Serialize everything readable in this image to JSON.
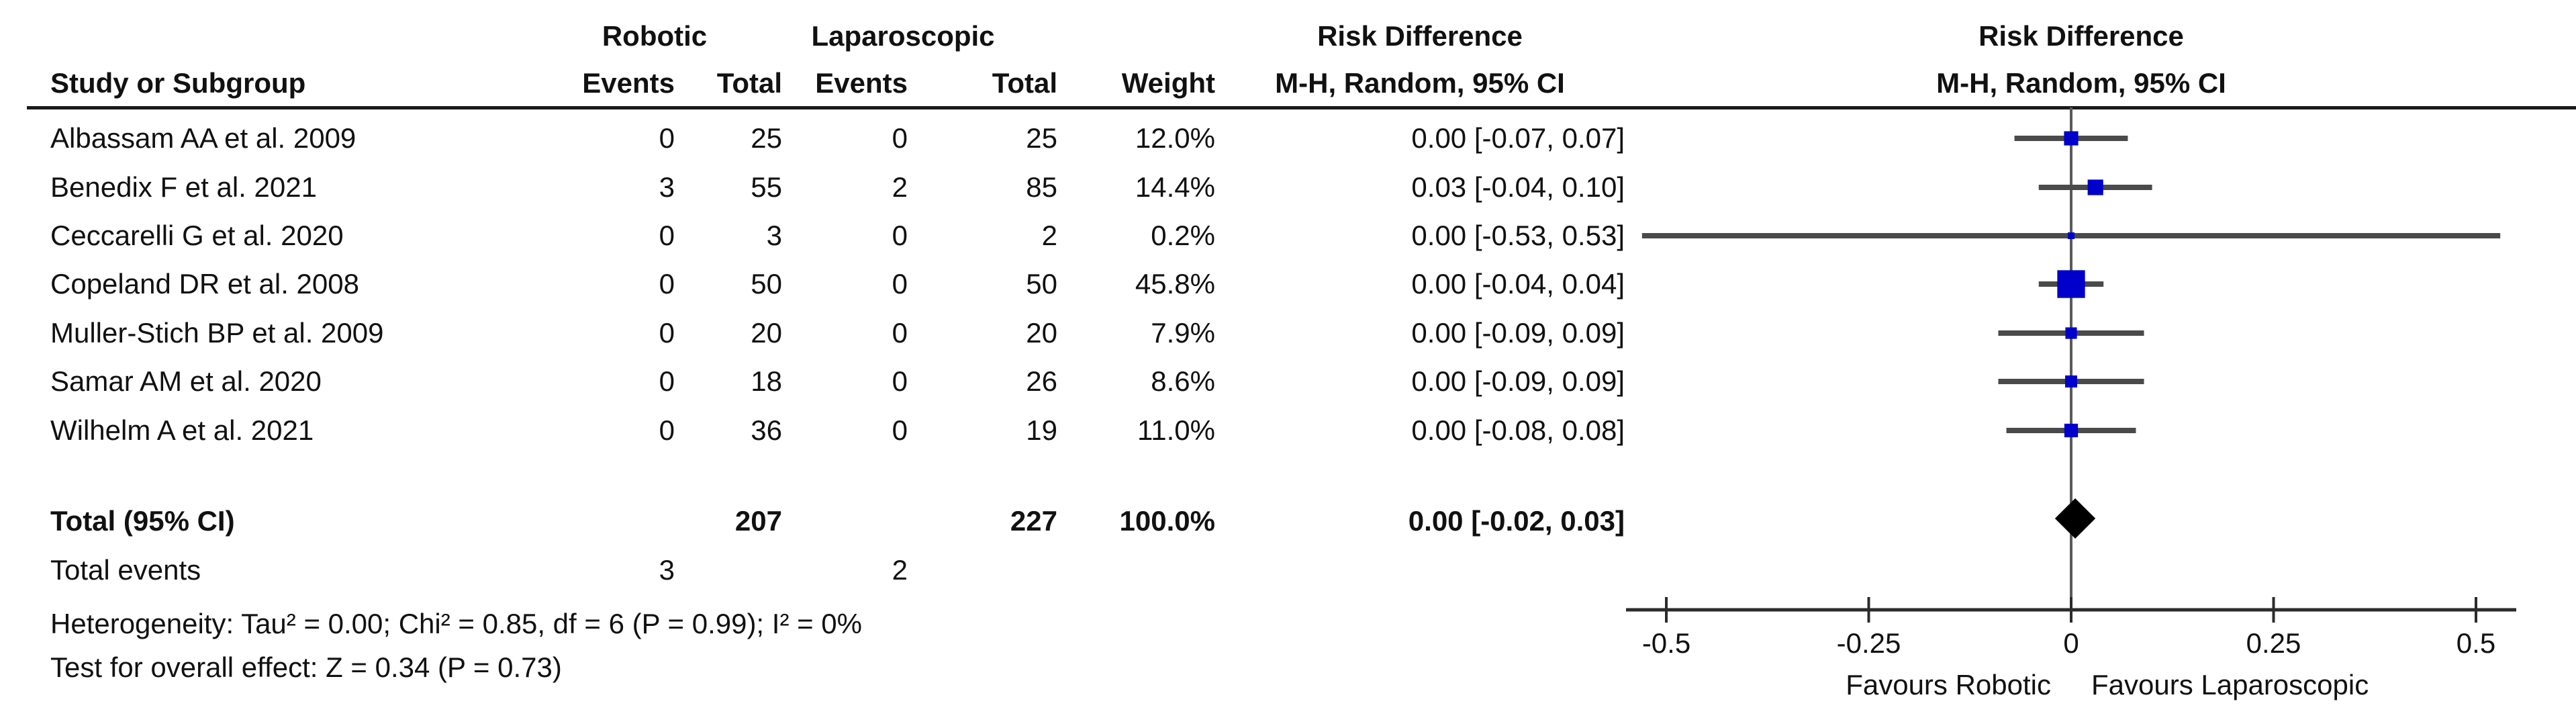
{
  "header": {
    "group_robotic": "Robotic",
    "group_laparoscopic": "Laparoscopic",
    "group_risk_difference_text": "Risk Difference",
    "group_risk_difference_plot": "Risk Difference",
    "col_study": "Study or Subgroup",
    "col_events_robotic": "Events",
    "col_total_robotic": "Total",
    "col_events_lap": "Events",
    "col_total_lap": "Total",
    "col_weight": "Weight",
    "col_mh_text": "M-H, Random, 95% CI",
    "col_mh_plot": "M-H, Random, 95% CI"
  },
  "rows": [
    {
      "study": "Albassam AA et al. 2009",
      "robotic_events": "0",
      "robotic_total": "25",
      "lap_events": "0",
      "lap_total": "25",
      "weight": "12.0%",
      "rd_ci": "0.00 [-0.07, 0.07]"
    },
    {
      "study": "Benedix F et al. 2021",
      "robotic_events": "3",
      "robotic_total": "55",
      "lap_events": "2",
      "lap_total": "85",
      "weight": "14.4%",
      "rd_ci": "0.03 [-0.04, 0.10]"
    },
    {
      "study": "Ceccarelli G et al. 2020",
      "robotic_events": "0",
      "robotic_total": "3",
      "lap_events": "0",
      "lap_total": "2",
      "weight": "0.2%",
      "rd_ci": "0.00 [-0.53, 0.53]"
    },
    {
      "study": "Copeland DR et al. 2008",
      "robotic_events": "0",
      "robotic_total": "50",
      "lap_events": "0",
      "lap_total": "50",
      "weight": "45.8%",
      "rd_ci": "0.00 [-0.04, 0.04]"
    },
    {
      "study": "Muller-Stich BP et al. 2009",
      "robotic_events": "0",
      "robotic_total": "20",
      "lap_events": "0",
      "lap_total": "20",
      "weight": "7.9%",
      "rd_ci": "0.00 [-0.09, 0.09]"
    },
    {
      "study": "Samar AM et al. 2020",
      "robotic_events": "0",
      "robotic_total": "18",
      "lap_events": "0",
      "lap_total": "26",
      "weight": "8.6%",
      "rd_ci": "0.00 [-0.09, 0.09]"
    },
    {
      "study": "Wilhelm A et al. 2021",
      "robotic_events": "0",
      "robotic_total": "36",
      "lap_events": "0",
      "lap_total": "19",
      "weight": "11.0%",
      "rd_ci": "0.00 [-0.08, 0.08]"
    }
  ],
  "totals": {
    "label": "Total (95% CI)",
    "robotic_total": "207",
    "lap_total": "227",
    "weight": "100.0%",
    "rd_ci": "0.00 [-0.02, 0.03]",
    "events_label": "Total events",
    "robotic_events": "3",
    "lap_events": "2"
  },
  "footer": {
    "heterogeneity": "Heterogeneity: Tau² = 0.00; Chi² = 0.85, df = 6 (P = 0.99); I² = 0%",
    "overall_effect": "Test for overall effect: Z = 0.34 (P = 0.73)"
  },
  "plot": {
    "ticks": [
      {
        "v": -0.5,
        "label": "-0.5"
      },
      {
        "v": -0.25,
        "label": "-0.25"
      },
      {
        "v": 0,
        "label": "0"
      },
      {
        "v": 0.25,
        "label": "0.25"
      },
      {
        "v": 0.5,
        "label": "0.5"
      }
    ],
    "favours_left": "Favours Robotic",
    "favours_right": "Favours Laparoscopic",
    "colors": {
      "marker": "#0000CC",
      "ci_line": "#4a4a4a",
      "axis": "#2b2b2b",
      "zero_line": "#5a5a5a",
      "diamond": "#000000"
    }
  },
  "chart_data": {
    "type": "scatter",
    "subtype": "forest_plot",
    "effect_measure": "Risk Difference (M-H, Random, 95% CI)",
    "studies": [
      "Albassam AA et al. 2009",
      "Benedix F et al. 2021",
      "Ceccarelli G et al. 2020",
      "Copeland DR et al. 2008",
      "Muller-Stich BP et al. 2009",
      "Samar AM et al. 2020",
      "Wilhelm A et al. 2021"
    ],
    "estimates": [
      0.0,
      0.03,
      0.0,
      0.0,
      0.0,
      0.0,
      0.0
    ],
    "ci_low": [
      -0.07,
      -0.04,
      -0.53,
      -0.04,
      -0.09,
      -0.09,
      -0.08
    ],
    "ci_high": [
      0.07,
      0.1,
      0.53,
      0.04,
      0.09,
      0.09,
      0.08
    ],
    "weights_pct": [
      12.0,
      14.4,
      0.2,
      45.8,
      7.9,
      8.6,
      11.0
    ],
    "robotic_events": [
      0,
      3,
      0,
      0,
      0,
      0,
      0
    ],
    "robotic_totals": [
      25,
      55,
      3,
      50,
      20,
      18,
      36
    ],
    "laparoscopic_events": [
      0,
      2,
      0,
      0,
      0,
      0,
      0
    ],
    "laparoscopic_totals": [
      25,
      85,
      2,
      50,
      20,
      26,
      19
    ],
    "total": {
      "estimate": 0.0,
      "ci_low": -0.02,
      "ci_high": 0.03,
      "weight_pct": 100.0,
      "robotic_total": 207,
      "laparoscopic_total": 227,
      "robotic_events": 3,
      "laparoscopic_events": 2
    },
    "xlim": [
      -0.5,
      0.5
    ],
    "x_ticks": [
      -0.5,
      -0.25,
      0,
      0.25,
      0.5
    ],
    "xlabel_left": "Favours Robotic",
    "xlabel_right": "Favours Laparoscopic",
    "heterogeneity": {
      "tau2": 0.0,
      "chi2": 0.85,
      "df": 6,
      "p": 0.99,
      "i2_pct": 0
    },
    "overall_effect": {
      "z": 0.34,
      "p": 0.73
    },
    "legend_position": "none",
    "grid": false
  }
}
